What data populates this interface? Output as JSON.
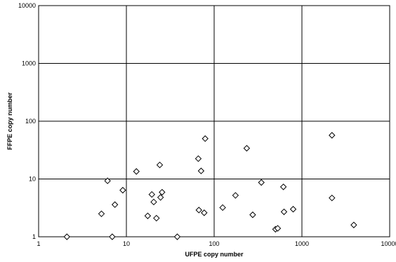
{
  "chart_data": {
    "type": "scatter",
    "title": "",
    "xlabel": "UFPE copy number",
    "ylabel": "FFPE copy number",
    "xscale": "log",
    "yscale": "log",
    "xlim": [
      1,
      10000
    ],
    "ylim": [
      1,
      10000
    ],
    "grid": true,
    "legend": "none",
    "x_ticks": [
      "1",
      "10",
      "100",
      "1000",
      "10000"
    ],
    "y_ticks": [
      "1",
      "10",
      "100",
      "1000",
      "10000"
    ],
    "marker": "open-diamond",
    "colors": {
      "marker_edge": "#000000",
      "marker_fill": "#ffffff",
      "grid": "#000000"
    },
    "points": [
      {
        "x": 2.1,
        "y": 1
      },
      {
        "x": 5.2,
        "y": 2.5
      },
      {
        "x": 6.1,
        "y": 9.3
      },
      {
        "x": 6.9,
        "y": 1
      },
      {
        "x": 7.4,
        "y": 3.6
      },
      {
        "x": 9.1,
        "y": 6.4
      },
      {
        "x": 13,
        "y": 13.5
      },
      {
        "x": 17.5,
        "y": 2.3
      },
      {
        "x": 19.5,
        "y": 5.4
      },
      {
        "x": 20.5,
        "y": 4
      },
      {
        "x": 22,
        "y": 2.1
      },
      {
        "x": 24,
        "y": 17.5
      },
      {
        "x": 24.5,
        "y": 4.8
      },
      {
        "x": 25.5,
        "y": 5.9
      },
      {
        "x": 38,
        "y": 1
      },
      {
        "x": 66,
        "y": 22.5
      },
      {
        "x": 67,
        "y": 2.9
      },
      {
        "x": 71,
        "y": 13.8
      },
      {
        "x": 77,
        "y": 2.6
      },
      {
        "x": 79,
        "y": 50
      },
      {
        "x": 125,
        "y": 3.2
      },
      {
        "x": 175,
        "y": 5.2
      },
      {
        "x": 235,
        "y": 34
      },
      {
        "x": 275,
        "y": 2.4
      },
      {
        "x": 345,
        "y": 8.7
      },
      {
        "x": 500,
        "y": 1.35
      },
      {
        "x": 530,
        "y": 1.4
      },
      {
        "x": 615,
        "y": 7.3
      },
      {
        "x": 625,
        "y": 2.7
      },
      {
        "x": 795,
        "y": 3
      },
      {
        "x": 2200,
        "y": 57
      },
      {
        "x": 2200,
        "y": 4.7
      },
      {
        "x": 3900,
        "y": 1.6
      }
    ]
  }
}
